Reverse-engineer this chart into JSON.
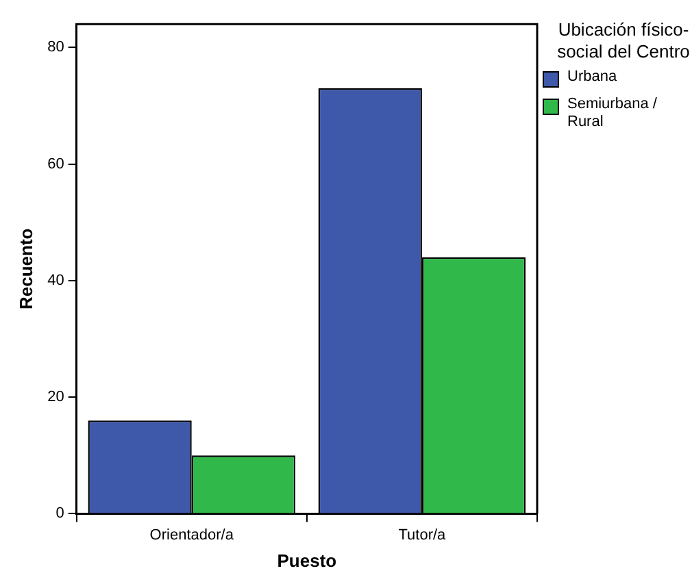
{
  "chart_data": {
    "type": "bar",
    "xlabel": "Puesto",
    "ylabel": "Recuento",
    "legend_title": "Ubicación físico-social del Centro",
    "categories": [
      "Orientador/a",
      "Tutor/a"
    ],
    "series": [
      {
        "name": "Urbana",
        "color": "#3f59aa",
        "values": [
          16,
          73
        ]
      },
      {
        "name": "Semiurbana / Rural",
        "color": "#30b84a",
        "values": [
          10,
          44
        ]
      }
    ],
    "ylim": [
      0,
      84
    ],
    "yticks": [
      0,
      20,
      40,
      60,
      80
    ],
    "grid": false,
    "legend": "right"
  }
}
